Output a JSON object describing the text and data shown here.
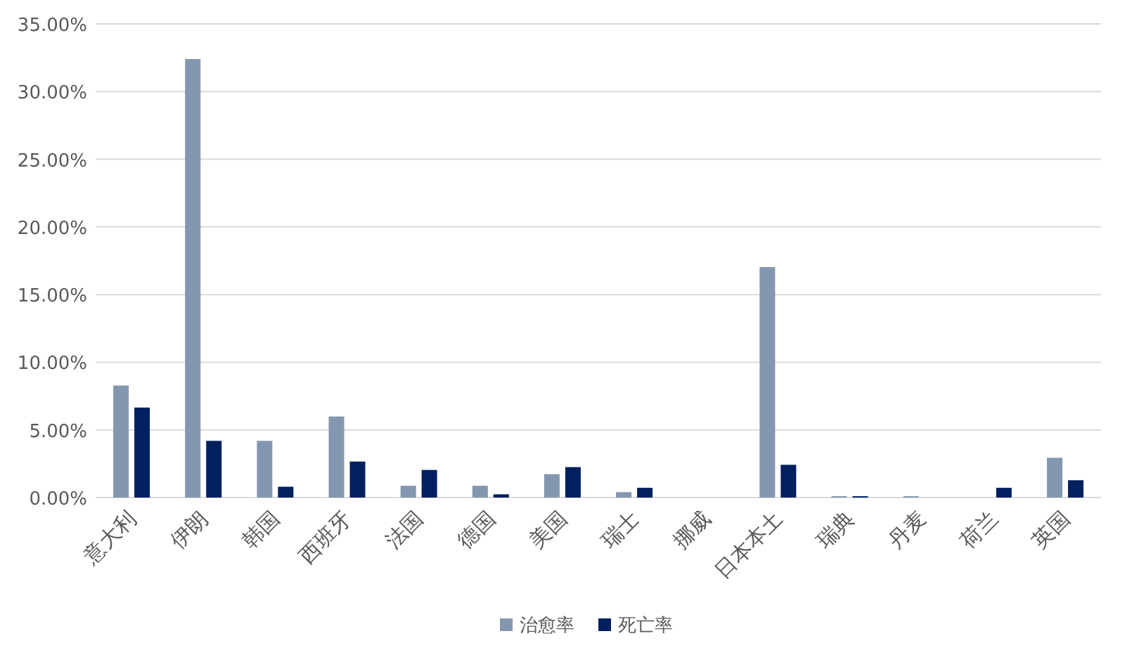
{
  "chart_data": {
    "type": "bar",
    "categories": [
      "意大利",
      "伊朗",
      "韩国",
      "西班牙",
      "法国",
      "德国",
      "美国",
      "瑞士",
      "挪威",
      "日本本土",
      "瑞典",
      "丹麦",
      "荷兰",
      "英国"
    ],
    "series": [
      {
        "name": "治愈率",
        "color": "#8497b0",
        "values": [
          8.28,
          32.4,
          4.19,
          5.99,
          0.87,
          0.87,
          1.73,
          0.4,
          0,
          17.03,
          0.1,
          0.1,
          0,
          2.94
        ]
      },
      {
        "name": "死亡率",
        "color": "#002060",
        "values": [
          6.65,
          4.19,
          0.8,
          2.66,
          2.04,
          0.24,
          2.25,
          0.72,
          0,
          2.42,
          0.1,
          0,
          0.72,
          1.28
        ]
      }
    ],
    "ylim": [
      0,
      35
    ],
    "yticks": [
      {
        "value": 0,
        "label": "0.00%"
      },
      {
        "value": 5,
        "label": "5.00%"
      },
      {
        "value": 10,
        "label": "10.00%"
      },
      {
        "value": 15,
        "label": "15.00%"
      },
      {
        "value": 20,
        "label": "20.00%"
      },
      {
        "value": 25,
        "label": "25.00%"
      },
      {
        "value": 30,
        "label": "30.00%"
      },
      {
        "value": 35,
        "label": "35.00%"
      }
    ],
    "grid": "y",
    "legend": "bottom"
  }
}
